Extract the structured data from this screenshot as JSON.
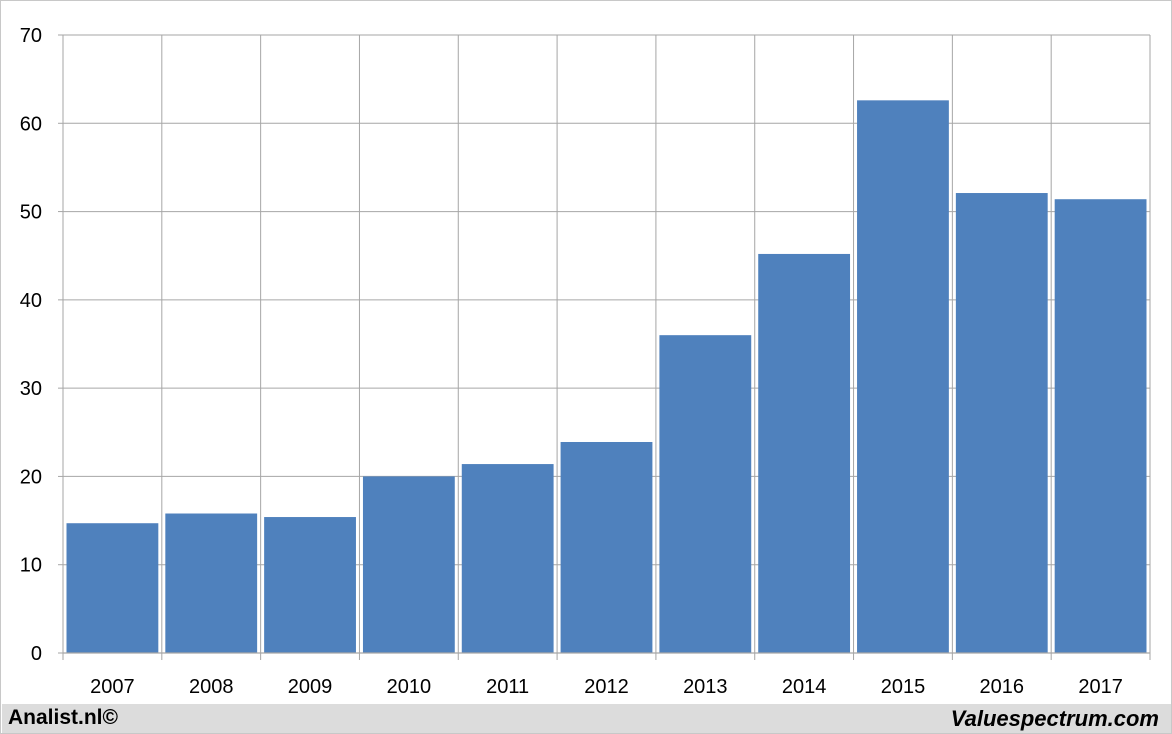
{
  "chart_data": {
    "type": "bar",
    "title": "",
    "xlabel": "",
    "ylabel": "",
    "categories": [
      "2007",
      "2008",
      "2009",
      "2010",
      "2011",
      "2012",
      "2013",
      "2014",
      "2015",
      "2016",
      "2017"
    ],
    "values": [
      14.7,
      15.8,
      15.4,
      20.0,
      21.4,
      23.9,
      36.0,
      45.2,
      62.6,
      52.1,
      51.4
    ],
    "ylim": [
      0,
      70
    ],
    "yticks": [
      "0",
      "10",
      "20",
      "30",
      "40",
      "50",
      "60",
      "70"
    ],
    "grid": true,
    "legend": "none",
    "bar_color": "#4f81bd",
    "grid_color": "#a6a6a6"
  },
  "footer": {
    "left_text": "Analist.nl©",
    "right_text": "Valuespectrum.com"
  }
}
